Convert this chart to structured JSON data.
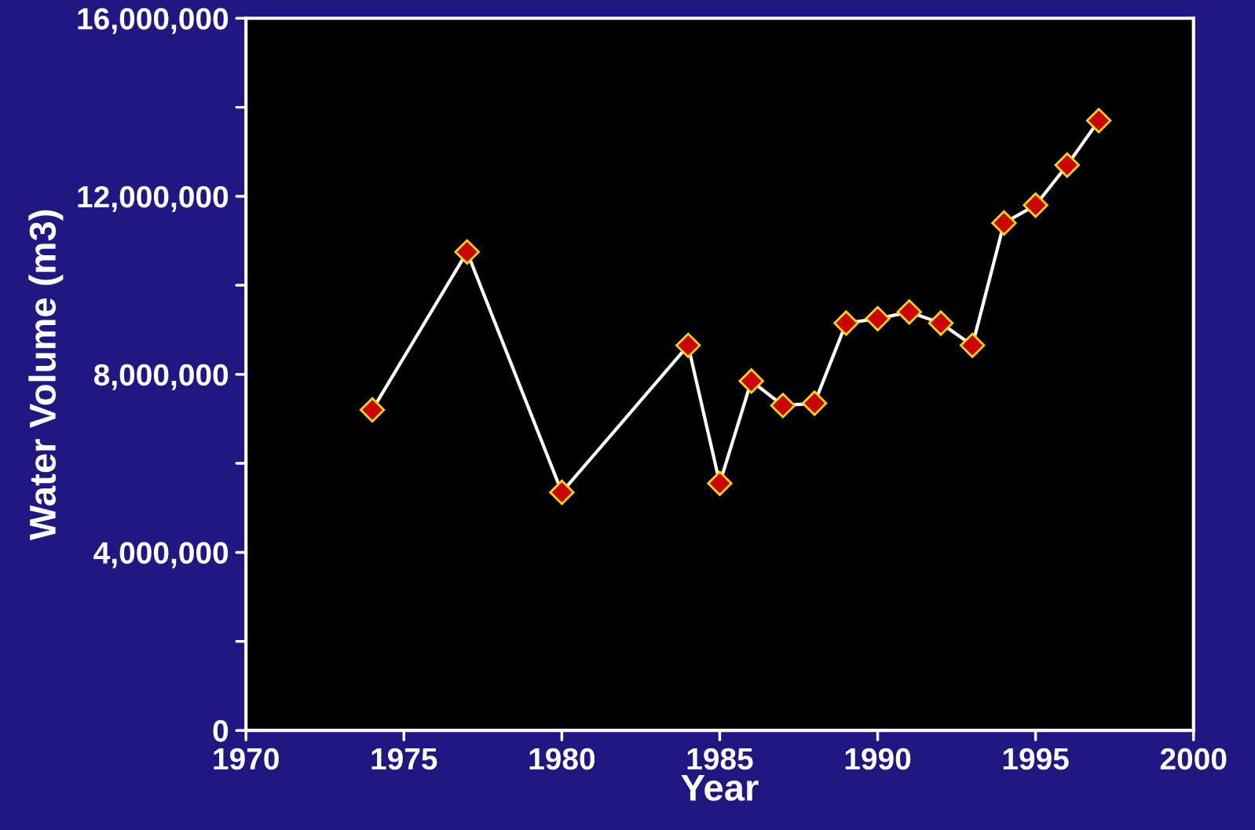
{
  "chart_data": {
    "type": "line",
    "xlabel": "Year",
    "ylabel": "Water Volume (m3)",
    "x": [
      1974,
      1977,
      1980,
      1984,
      1985,
      1986,
      1987,
      1988,
      1989,
      1990,
      1991,
      1992,
      1993,
      1994,
      1995,
      1996,
      1997
    ],
    "series": [
      {
        "color": "#cc0000",
        "values": [
          7200000,
          10750000,
          5350000,
          8650000,
          5550000,
          7850000,
          7300000,
          7350000,
          9150000,
          9250000,
          9400000,
          9150000,
          8650000,
          11400000,
          11800000,
          12700000,
          13700000
        ]
      }
    ],
    "xlim": [
      1970,
      2000
    ],
    "xticks": [
      1970,
      1975,
      1980,
      1985,
      1990,
      1995,
      2000
    ],
    "ylim": [
      0,
      16000000
    ],
    "yticks": [
      {
        "value": 0,
        "label": "0"
      },
      {
        "value": 2000000,
        "label": null
      },
      {
        "value": 4000000,
        "label": "4,000,000"
      },
      {
        "value": 6000000,
        "label": null
      },
      {
        "value": 8000000,
        "label": "8,000,000"
      },
      {
        "value": 10000000,
        "label": null
      },
      {
        "value": 12000000,
        "label": "12,000,000"
      },
      {
        "value": 14000000,
        "label": null
      },
      {
        "value": 16000000,
        "label": "16,000,000"
      }
    ],
    "marker": "diamond",
    "line_style": "solid",
    "grid": false,
    "legend": false
  }
}
